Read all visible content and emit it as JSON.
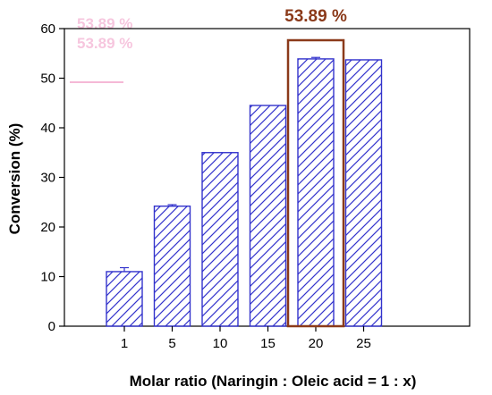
{
  "chart_data": {
    "type": "bar",
    "title": "",
    "xlabel": "Molar ratio (Naringin : Oleic acid = 1 : x)",
    "ylabel": "Conversion (%)",
    "categories": [
      "1",
      "5",
      "10",
      "15",
      "20",
      "25"
    ],
    "values": [
      11,
      24.2,
      35,
      44.5,
      53.89,
      53.7
    ],
    "error": [
      0.8,
      0.3,
      0,
      0,
      0.3,
      0
    ],
    "ylim": [
      0,
      60
    ],
    "yticks": [
      0,
      10,
      20,
      30,
      40,
      50,
      60
    ],
    "grid": false,
    "legend": "none",
    "bar_fill": "hatched",
    "bar_color": "#3333cc",
    "highlight": {
      "category": "20",
      "label": "53.89 %",
      "color": "#8b3a1a"
    }
  }
}
